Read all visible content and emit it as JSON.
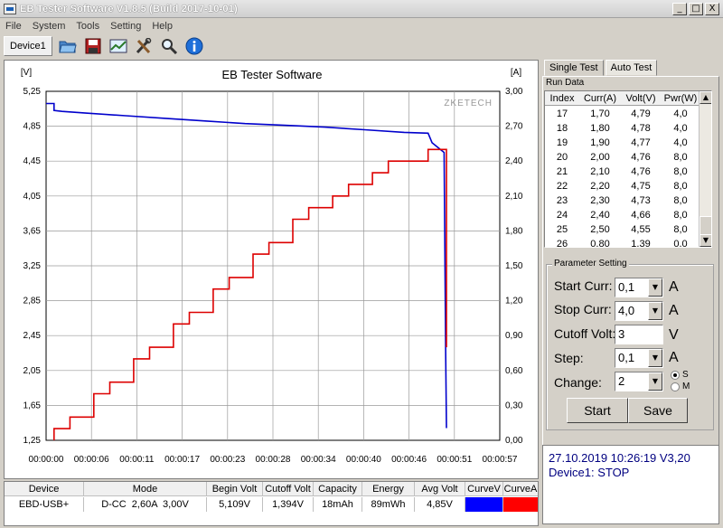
{
  "window": {
    "title": "EB Tester Software V1.8.5 (Build 2017-10-01)",
    "buttons": [
      "_",
      "□",
      "X"
    ]
  },
  "menu": [
    "File",
    "System",
    "Tools",
    "Setting",
    "Help"
  ],
  "toolbar": {
    "device_tab": "Device1",
    "icons": [
      "folder-open-icon",
      "save-icon",
      "chart-icon",
      "tools-icon",
      "search-icon",
      "info-icon"
    ]
  },
  "chart": {
    "title": "EB Tester Software",
    "left_unit": "[V]",
    "right_unit": "[A]",
    "watermark": "ZKETECH",
    "v_ticks": [
      "5,25",
      "4,85",
      "4,45",
      "4,05",
      "3,65",
      "3,25",
      "2,85",
      "2,45",
      "2,05",
      "1,65",
      "1,25"
    ],
    "a_ticks": [
      "3,00",
      "2,70",
      "2,40",
      "2,10",
      "1,80",
      "1,50",
      "1,20",
      "0,90",
      "0,60",
      "0,30",
      "0,00"
    ],
    "x_ticks": [
      "00:00:00",
      "00:00:06",
      "00:00:11",
      "00:00:17",
      "00:00:23",
      "00:00:28",
      "00:00:34",
      "00:00:40",
      "00:00:46",
      "00:00:51",
      "00:00:57"
    ],
    "colors": {
      "voltage": "#0000cc",
      "current": "#dd0000",
      "grid": "#9a9a9a"
    }
  },
  "chart_data": {
    "type": "line",
    "title": "EB Tester Software",
    "ylabel": "[V]",
    "y2label": "[A]",
    "xlim_seconds": [
      0,
      57
    ],
    "ylim": [
      1.25,
      5.25
    ],
    "y2lim": [
      0,
      3.0
    ],
    "grid": true,
    "series": [
      {
        "axis": "left",
        "x_seconds": [
          0,
          1,
          1,
          2,
          5,
          10,
          15,
          20,
          25,
          30,
          35,
          40,
          45,
          48,
          48.5,
          50,
          50.2,
          50.3
        ],
        "values": [
          5.11,
          5.11,
          5.03,
          5.02,
          5.0,
          4.97,
          4.94,
          4.91,
          4.88,
          4.86,
          4.84,
          4.81,
          4.78,
          4.77,
          4.66,
          4.55,
          2.3,
          1.39
        ]
      },
      {
        "axis": "right",
        "x_seconds": [
          1,
          3,
          6,
          8,
          11,
          13,
          16,
          18,
          21,
          23,
          26,
          28,
          31,
          33,
          36,
          38,
          41,
          43,
          46,
          48,
          50,
          50.3
        ],
        "values": [
          0.1,
          0.2,
          0.4,
          0.5,
          0.7,
          0.8,
          1.0,
          1.1,
          1.3,
          1.4,
          1.6,
          1.7,
          1.9,
          2.0,
          2.1,
          2.2,
          2.3,
          2.4,
          2.4,
          2.5,
          2.5,
          0.8
        ]
      }
    ]
  },
  "info_table": {
    "headers": [
      "Device",
      "Mode",
      "Begin Volt",
      "Cutoff Volt",
      "Capacity",
      "Energy",
      "Avg Volt",
      "CurveV",
      "CurveA"
    ],
    "row": [
      "EBD-USB+",
      "D-CC  2,60A  3,00V",
      "5,109V",
      "1,394V",
      "18mAh",
      "89mWh",
      "4,85V",
      "",
      ""
    ],
    "curve_colors": [
      "#0000ff",
      "#ff0000"
    ]
  },
  "tabs": [
    "Single Test",
    "Auto Test"
  ],
  "run_data": {
    "legend": "Run Data",
    "headers": [
      "Index",
      "Curr(A)",
      "Volt(V)",
      "Pwr(W)"
    ],
    "rows": [
      [
        "17",
        "1,70",
        "4,79",
        "4,0"
      ],
      [
        "18",
        "1,80",
        "4,78",
        "4,0"
      ],
      [
        "19",
        "1,90",
        "4,77",
        "4,0"
      ],
      [
        "20",
        "2,00",
        "4,76",
        "8,0"
      ],
      [
        "21",
        "2,10",
        "4,76",
        "8,0"
      ],
      [
        "22",
        "2,20",
        "4,75",
        "8,0"
      ],
      [
        "23",
        "2,30",
        "4,73",
        "8,0"
      ],
      [
        "24",
        "2,40",
        "4,66",
        "8,0"
      ],
      [
        "25",
        "2,50",
        "4,55",
        "8,0"
      ],
      [
        "26",
        "0,80",
        "1,39",
        "0,0"
      ]
    ]
  },
  "params": {
    "legend": "Parameter Setting",
    "start_curr": {
      "label": "Start Curr:",
      "value": "0,1",
      "unit": "A"
    },
    "stop_curr": {
      "label": "Stop Curr:",
      "value": "4,0",
      "unit": "A"
    },
    "cutoff_volt": {
      "label": "Cutoff Volt:",
      "value": "3",
      "unit": "V"
    },
    "step": {
      "label": "Step:",
      "value": "0,1",
      "unit": "A"
    },
    "change": {
      "label": "Change:",
      "value": "2",
      "radio_s": "S",
      "radio_m": "M"
    },
    "start_button": "Start",
    "save_button": "Save"
  },
  "status": {
    "line1": "27.10.2019 10:26:19  V3,20",
    "line2": "Device1: STOP"
  }
}
